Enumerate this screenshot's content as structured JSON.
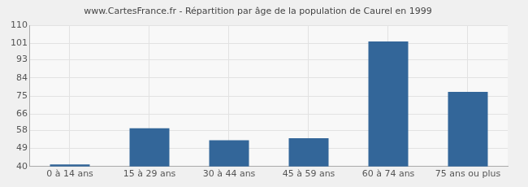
{
  "chart_data": {
    "type": "bar",
    "title": "www.CartesFrance.fr - Répartition par âge de la population de Caurel en 1999",
    "categories": [
      "0 à 14 ans",
      "15 à 29 ans",
      "30 à 44 ans",
      "45 à 59 ans",
      "60 à 74 ans",
      "75 ans ou plus"
    ],
    "values": [
      41,
      59,
      53,
      54,
      102,
      77
    ],
    "color": "#336699",
    "ylim": [
      40,
      110
    ],
    "yticks": [
      40,
      49,
      58,
      66,
      75,
      84,
      93,
      101,
      110
    ],
    "grid": true
  }
}
